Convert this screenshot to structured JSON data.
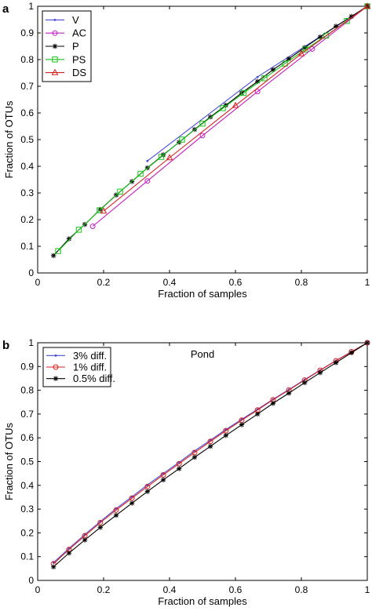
{
  "chart_data": [
    {
      "panel_label": "a",
      "type": "line",
      "xlabel": "Fraction of samples",
      "ylabel": "Fraction of OTUs",
      "xlim": [
        0,
        1
      ],
      "ylim": [
        0,
        1
      ],
      "x_ticks": [
        "0",
        "0.2",
        "0.4",
        "0.6",
        "0.8",
        "1"
      ],
      "y_ticks": [
        "0",
        "0.1",
        "0.2",
        "0.3",
        "0.4",
        "0.5",
        "0.6",
        "0.7",
        "0.8",
        "0.9",
        "1"
      ],
      "grid": false,
      "legend_position": "top-left",
      "annotation": "",
      "series": [
        {
          "name": "V",
          "color": "#4b4bd8",
          "marker": "point",
          "x": [
            0.333,
            0.667,
            1.0
          ],
          "y": [
            0.42,
            0.735,
            1.0
          ]
        },
        {
          "name": "AC",
          "color": "#c21fc2",
          "marker": "circle",
          "x": [
            0.167,
            0.333,
            0.5,
            0.667,
            0.833,
            1.0
          ],
          "y": [
            0.175,
            0.345,
            0.515,
            0.68,
            0.84,
            1.0
          ]
        },
        {
          "name": "P",
          "color": "#000000",
          "marker": "star",
          "x": [
            0.048,
            0.095,
            0.143,
            0.19,
            0.238,
            0.286,
            0.333,
            0.381,
            0.429,
            0.476,
            0.524,
            0.571,
            0.619,
            0.667,
            0.714,
            0.762,
            0.81,
            0.857,
            0.905,
            0.952,
            1.0
          ],
          "y": [
            0.065,
            0.128,
            0.182,
            0.238,
            0.292,
            0.343,
            0.394,
            0.443,
            0.49,
            0.538,
            0.585,
            0.629,
            0.675,
            0.718,
            0.762,
            0.803,
            0.845,
            0.885,
            0.925,
            0.962,
            1.0
          ]
        },
        {
          "name": "PS",
          "color": "#19c219",
          "marker": "square",
          "x": [
            0.062,
            0.125,
            0.188,
            0.25,
            0.312,
            0.375,
            0.438,
            0.5,
            0.562,
            0.625,
            0.688,
            0.75,
            0.812,
            0.875,
            0.938,
            1.0
          ],
          "y": [
            0.082,
            0.162,
            0.235,
            0.305,
            0.372,
            0.435,
            0.5,
            0.56,
            0.618,
            0.675,
            0.73,
            0.785,
            0.838,
            0.89,
            0.945,
            1.0
          ]
        },
        {
          "name": "DS",
          "color": "#d42020",
          "marker": "triangle",
          "x": [
            0.2,
            0.4,
            0.6,
            0.8,
            1.0
          ],
          "y": [
            0.232,
            0.432,
            0.628,
            0.822,
            1.0
          ]
        }
      ]
    },
    {
      "panel_label": "b",
      "type": "line",
      "xlabel": "Fraction of samples",
      "ylabel": "Fraction of OTUs",
      "xlim": [
        0,
        1
      ],
      "ylim": [
        0,
        1
      ],
      "x_ticks": [
        "0",
        "0.2",
        "0.4",
        "0.6",
        "0.8",
        "1"
      ],
      "y_ticks": [
        "0",
        "0.1",
        "0.2",
        "0.3",
        "0.4",
        "0.5",
        "0.6",
        "0.7",
        "0.8",
        "0.9",
        "1"
      ],
      "grid": false,
      "legend_position": "top-left",
      "annotation": "Pond",
      "series": [
        {
          "name": "3% diff.",
          "color": "#4b4bd8",
          "marker": "point",
          "x": [
            0.048,
            0.095,
            0.143,
            0.19,
            0.238,
            0.286,
            0.333,
            0.381,
            0.429,
            0.476,
            0.524,
            0.571,
            0.619,
            0.667,
            0.714,
            0.762,
            0.81,
            0.857,
            0.905,
            0.952,
            1.0
          ],
          "y": [
            0.075,
            0.135,
            0.193,
            0.248,
            0.302,
            0.352,
            0.402,
            0.45,
            0.497,
            0.545,
            0.59,
            0.635,
            0.678,
            0.72,
            0.762,
            0.803,
            0.845,
            0.885,
            0.925,
            0.962,
            1.0
          ]
        },
        {
          "name": "1% diff.",
          "color": "#d42020",
          "marker": "circle",
          "x": [
            0.048,
            0.095,
            0.143,
            0.19,
            0.238,
            0.286,
            0.333,
            0.381,
            0.429,
            0.476,
            0.524,
            0.571,
            0.619,
            0.667,
            0.714,
            0.762,
            0.81,
            0.857,
            0.905,
            0.952,
            1.0
          ],
          "y": [
            0.07,
            0.13,
            0.188,
            0.243,
            0.296,
            0.346,
            0.395,
            0.444,
            0.491,
            0.538,
            0.585,
            0.63,
            0.674,
            0.717,
            0.76,
            0.801,
            0.843,
            0.884,
            0.924,
            0.962,
            1.0
          ]
        },
        {
          "name": "0.5% diff.",
          "color": "#000000",
          "marker": "star",
          "x": [
            0.048,
            0.095,
            0.143,
            0.19,
            0.238,
            0.286,
            0.333,
            0.381,
            0.429,
            0.476,
            0.524,
            0.571,
            0.619,
            0.667,
            0.714,
            0.762,
            0.81,
            0.857,
            0.905,
            0.952,
            1.0
          ],
          "y": [
            0.057,
            0.115,
            0.17,
            0.223,
            0.274,
            0.325,
            0.374,
            0.423,
            0.47,
            0.518,
            0.564,
            0.61,
            0.655,
            0.7,
            0.745,
            0.788,
            0.832,
            0.874,
            0.916,
            0.958,
            1.0
          ]
        }
      ]
    }
  ]
}
